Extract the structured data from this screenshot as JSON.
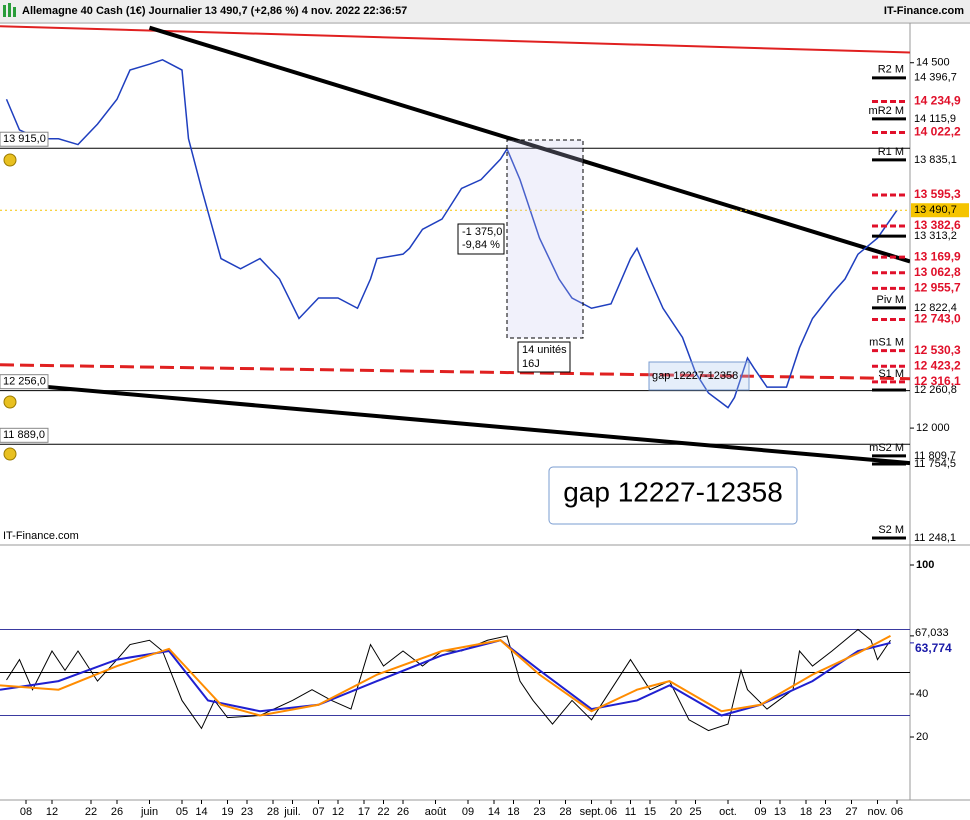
{
  "chart_data": [
    {
      "type": "line",
      "title": "Allemagne 40 Cash (1€) Journalier 13 490,7 (+2,86 %) 4 nov. 2022 22:36:57",
      "source": "IT-Finance.com",
      "source_bottom": "IT-Finance.com",
      "xlim": [
        0,
        140
      ],
      "ylim": [
        11200,
        14765
      ],
      "xticks": [
        {
          "value": 4,
          "label": "08"
        },
        {
          "value": 8,
          "label": "12"
        },
        {
          "value": 14,
          "label": "22"
        },
        {
          "value": 18,
          "label": "26"
        },
        {
          "value": 23,
          "label": "juin"
        },
        {
          "value": 28,
          "label": "05"
        },
        {
          "value": 31,
          "label": "14"
        },
        {
          "value": 35,
          "label": "19"
        },
        {
          "value": 38,
          "label": "23"
        },
        {
          "value": 42,
          "label": "28"
        },
        {
          "value": 45,
          "label": "juil."
        },
        {
          "value": 49,
          "label": "07"
        },
        {
          "value": 52,
          "label": "12"
        },
        {
          "value": 56,
          "label": "17"
        },
        {
          "value": 59,
          "label": "22"
        },
        {
          "value": 62,
          "label": "26"
        },
        {
          "value": 67,
          "label": "août"
        },
        {
          "value": 72,
          "label": "09"
        },
        {
          "value": 76,
          "label": "14"
        },
        {
          "value": 79,
          "label": "18"
        },
        {
          "value": 83,
          "label": "23"
        },
        {
          "value": 87,
          "label": "28"
        },
        {
          "value": 91,
          "label": "sept."
        },
        {
          "value": 94,
          "label": "06"
        },
        {
          "value": 97,
          "label": "11"
        },
        {
          "value": 100,
          "label": "15"
        },
        {
          "value": 104,
          "label": "20"
        },
        {
          "value": 107,
          "label": "25"
        },
        {
          "value": 112,
          "label": "oct."
        },
        {
          "value": 117,
          "label": "09"
        },
        {
          "value": 120,
          "label": "13"
        },
        {
          "value": 124,
          "label": "18"
        },
        {
          "value": 127,
          "label": "23"
        },
        {
          "value": 131,
          "label": "27"
        },
        {
          "value": 135,
          "label": "nov."
        },
        {
          "value": 138,
          "label": "06"
        }
      ],
      "yticks": [
        {
          "value": 14500,
          "label": "14 500"
        },
        {
          "value": 12000,
          "label": "12 000"
        }
      ],
      "series": [
        {
          "color": "#1f3fbf",
          "x": [
            1,
            3,
            6,
            9,
            12,
            15,
            18,
            20,
            23,
            25,
            28,
            29,
            31,
            34,
            37,
            40,
            43,
            46,
            49,
            52,
            55,
            57,
            58,
            62,
            63,
            65,
            68,
            71,
            74,
            77,
            78,
            80,
            83,
            86,
            88,
            91,
            94,
            97,
            98,
            100,
            102,
            105,
            107,
            109,
            112,
            113,
            115,
            116,
            118,
            121,
            123,
            125,
            128,
            130,
            132,
            135,
            138
          ],
          "values": [
            14250,
            14040,
            13980,
            13980,
            13940,
            14080,
            14250,
            14450,
            14490,
            14520,
            14450,
            13980,
            13640,
            13160,
            13090,
            13160,
            13020,
            12750,
            12890,
            12890,
            12820,
            13020,
            13160,
            13190,
            13230,
            13360,
            13430,
            13640,
            13700,
            13840,
            13910,
            13700,
            13300,
            13020,
            12890,
            12820,
            12850,
            13160,
            13230,
            13020,
            12820,
            12620,
            12380,
            12240,
            12140,
            12210,
            12480,
            12410,
            12280,
            12280,
            12550,
            12750,
            12920,
            13020,
            13190,
            13300,
            13490.7
          ]
        }
      ],
      "trendlines": [
        {
          "color": "#e02020",
          "style": "solid",
          "width": 2,
          "x": [
            0,
            140
          ],
          "values": [
            14750,
            14570
          ]
        },
        {
          "color": "#000000",
          "style": "solid",
          "width": 4,
          "x": [
            23,
            140
          ],
          "values": [
            14740,
            13140
          ]
        },
        {
          "color": "#000000",
          "style": "solid",
          "width": 4,
          "x": [
            0,
            140
          ],
          "values": [
            12310,
            11760
          ]
        },
        {
          "color": "#e02020",
          "style": "dashed",
          "width": 3,
          "x": [
            0,
            140
          ],
          "values": [
            12433,
            12338
          ]
        }
      ],
      "levels": [
        {
          "value": 14396.7,
          "label": "14 396,7",
          "color": "#000000",
          "tag": "R2 M"
        },
        {
          "value": 14234.9,
          "label": "14 234,9",
          "color": "#e0102a"
        },
        {
          "value": 14115.9,
          "label": "14 115,9",
          "color": "#000000",
          "tag": "mR2 M"
        },
        {
          "value": 14022.2,
          "label": "14 022,2",
          "color": "#e0102a"
        },
        {
          "value": 13835.1,
          "label": "13 835,1",
          "color": "#000000",
          "tag": "R1 M"
        },
        {
          "value": 13595.3,
          "label": "13 595,3",
          "color": "#e0102a"
        },
        {
          "value": 13490.7,
          "label": "13 490,7",
          "color": "#000000",
          "background": "#f5c400",
          "style": "dotted-full"
        },
        {
          "value": 13382.6,
          "label": "13 382,6",
          "color": "#e0102a"
        },
        {
          "value": 13313.2,
          "label": "13 313,2",
          "color": "#000000"
        },
        {
          "value": 13169.9,
          "label": "13 169,9",
          "color": "#e0102a"
        },
        {
          "value": 13062.8,
          "label": "13 062,8",
          "color": "#e0102a"
        },
        {
          "value": 12955.7,
          "label": "12 955,7",
          "color": "#e0102a"
        },
        {
          "value": 12822.4,
          "label": "12 822,4",
          "color": "#000000",
          "tag": "Piv M"
        },
        {
          "value": 12743.0,
          "label": "12 743,0",
          "color": "#e0102a"
        },
        {
          "value": 12530.3,
          "label": "12 530,3",
          "color": "#e0102a",
          "tag": "mS1 M"
        },
        {
          "value": 12423.2,
          "label": "12 423,2",
          "color": "#e0102a"
        },
        {
          "value": 12316.1,
          "label": "12 316,1",
          "color": "#e0102a",
          "tag": "S1 M"
        },
        {
          "value": 12260.8,
          "label": "12 260,8",
          "color": "#000000"
        },
        {
          "value": 11809.7,
          "label": "11 809,7",
          "color": "#000000",
          "tag": "mS2 M"
        },
        {
          "value": 11754.5,
          "label": "11 754,5",
          "color": "#000000"
        },
        {
          "value": 11248.1,
          "label": "11 248,1",
          "color": "#000000",
          "tag": "S2 M"
        }
      ],
      "left_levels": [
        {
          "value": 13915.0,
          "label": "13 915,0"
        },
        {
          "value": 12256.0,
          "label": "12 256,0"
        },
        {
          "value": 11889.0,
          "label": "11 889,0"
        }
      ],
      "annotations": [
        "-1 375,0",
        "-9,84 %",
        "14 unités",
        "16J",
        "gap 12227-12358",
        "gap 12227-12358"
      ]
    },
    {
      "type": "line",
      "xlim": [
        0,
        140
      ],
      "ylim": [
        -9.3,
        109.3
      ],
      "yticks": [
        100,
        40,
        20
      ],
      "hlines": [
        70,
        50,
        30
      ],
      "series": [
        {
          "color": "#000000",
          "width": 1,
          "x": [
            1,
            3,
            5,
            8,
            10,
            12,
            15,
            18,
            20,
            23,
            25,
            28,
            31,
            33,
            35,
            40,
            45,
            48,
            51,
            54,
            57,
            59,
            62,
            65,
            68,
            71,
            75,
            78,
            80,
            82,
            85,
            88,
            91,
            94,
            97,
            100,
            103,
            106,
            109,
            112,
            114,
            115,
            118,
            122,
            123,
            125,
            128,
            130,
            132,
            134,
            135,
            137
          ],
          "values": [
            46.5,
            56,
            42,
            60,
            51,
            60,
            46,
            56,
            63,
            65,
            60,
            37,
            24,
            37,
            29,
            30,
            37,
            42,
            37,
            33,
            63,
            53,
            60,
            53,
            60,
            60,
            65,
            67,
            46,
            37,
            26,
            37,
            28,
            42,
            56,
            42,
            46,
            28,
            23,
            26,
            51,
            42,
            33,
            42,
            60,
            53,
            60,
            65,
            70,
            65,
            56,
            65
          ]
        },
        {
          "color": "#2020d0",
          "width": 2,
          "x": [
            0,
            9,
            18,
            26,
            32,
            40,
            49,
            58,
            68,
            77,
            83,
            91,
            98,
            103,
            111,
            117,
            125,
            132,
            137
          ],
          "values": [
            42,
            46,
            56,
            60,
            37,
            32,
            35,
            46,
            58,
            65,
            51,
            33,
            37,
            44,
            30,
            35,
            46,
            60,
            63.774
          ]
        },
        {
          "color": "#ff8c00",
          "width": 2,
          "x": [
            0,
            9,
            18,
            26,
            34,
            40,
            49,
            58,
            68,
            77,
            83,
            91,
            98,
            103,
            111,
            117,
            125,
            132,
            137
          ],
          "values": [
            44,
            42,
            53,
            61,
            35,
            30,
            35,
            49,
            60,
            65,
            49,
            32,
            42,
            46,
            32,
            35,
            49,
            59,
            67.033
          ]
        }
      ],
      "last_labels": [
        {
          "value": 67.033,
          "label": "67,033",
          "color": "#000000"
        },
        {
          "value": 63.774,
          "label": "63,774",
          "color": "#1a1aa8"
        }
      ]
    }
  ]
}
